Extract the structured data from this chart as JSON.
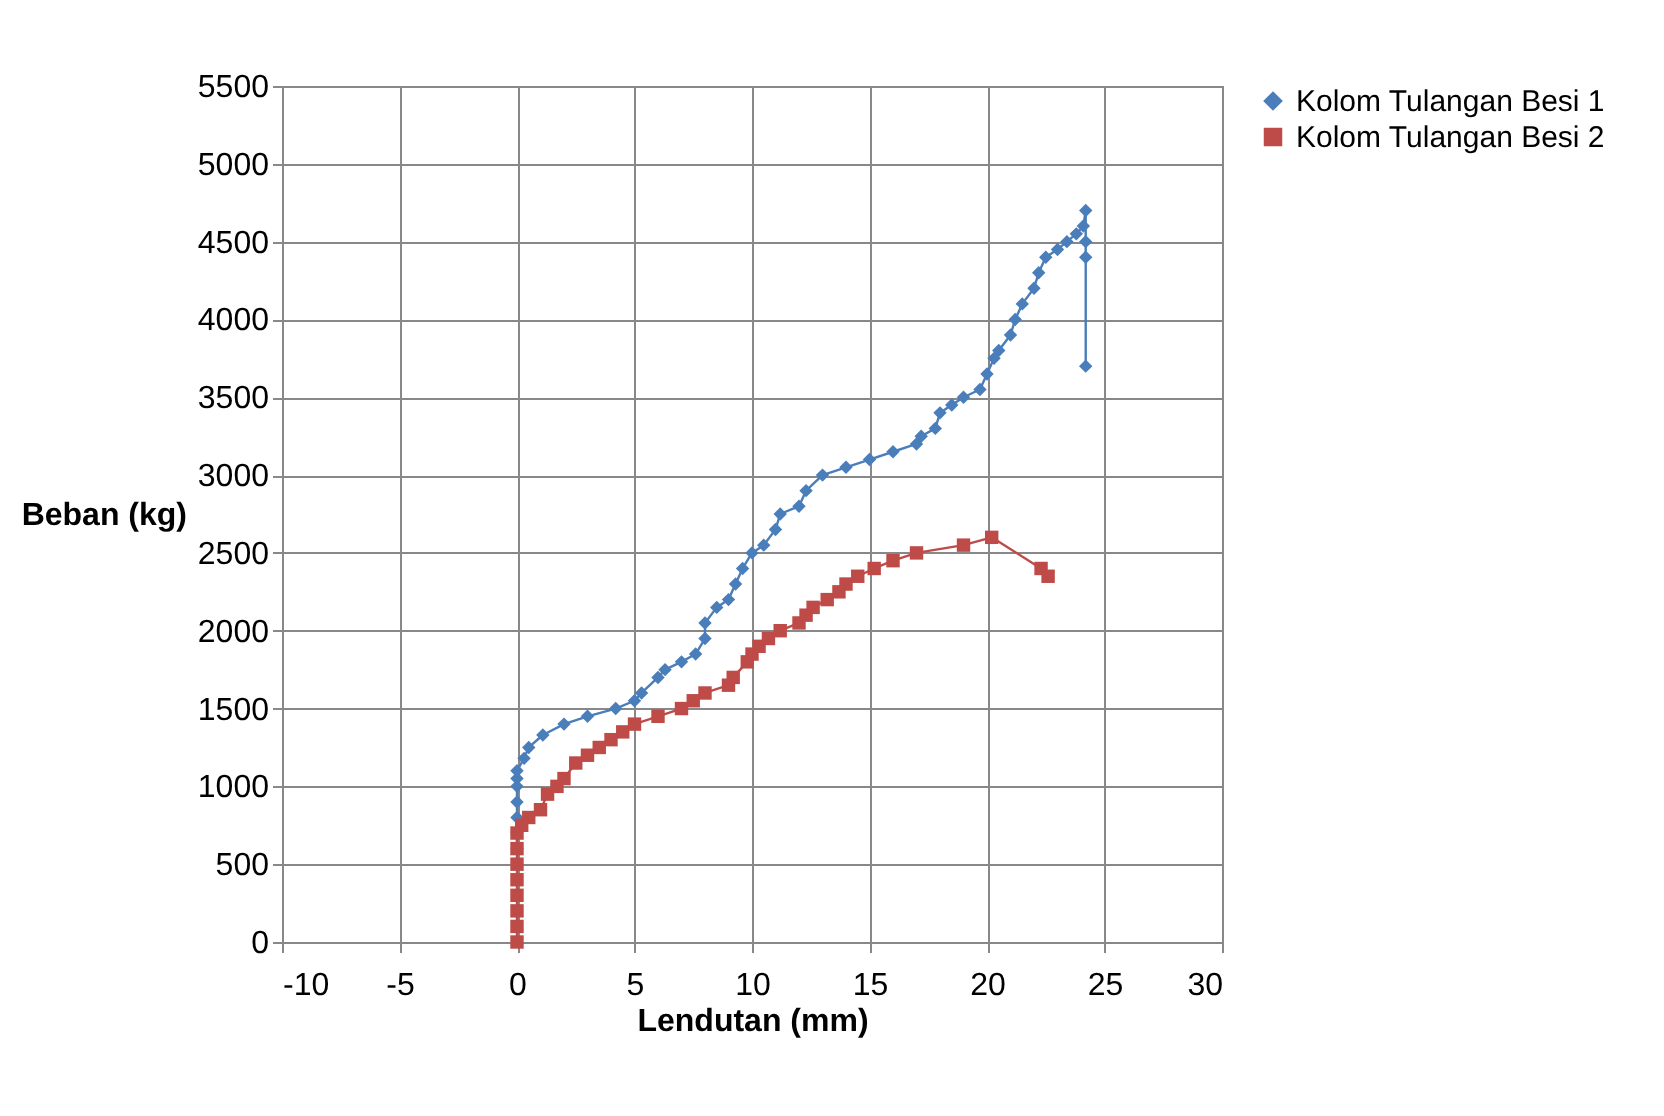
{
  "chart_data": {
    "type": "line",
    "xlabel": "Lendutan (mm)",
    "ylabel": "Beban (kg)",
    "xlim": [
      -10,
      30
    ],
    "xticks": [
      -10,
      -5,
      0,
      5,
      10,
      15,
      20,
      25,
      30
    ],
    "ylim": [
      0,
      5500
    ],
    "yticks": [
      0,
      500,
      1000,
      1500,
      2000,
      2500,
      3000,
      3500,
      4000,
      4500,
      5000,
      5500
    ],
    "grid": true,
    "legend": "right",
    "series": [
      {
        "name": "Kolom Tulangan Besi 1",
        "color": "#4a7ebb",
        "marker": "diamond",
        "x": [
          0,
          0,
          0,
          0,
          0,
          0,
          0,
          0.3,
          0.5,
          1.1,
          2,
          3,
          4.2,
          5,
          5.3,
          6,
          6.3,
          7,
          7.6,
          8,
          8,
          8.5,
          9,
          9.3,
          9.6,
          10,
          10.5,
          11,
          11.2,
          12,
          12.3,
          13,
          14,
          15,
          16,
          17,
          17.2,
          17.8,
          18,
          18.5,
          19,
          19.7,
          20,
          20.3,
          20.5,
          21,
          21.2,
          21.5,
          22,
          22.2,
          22.5,
          23,
          23.4,
          23.8,
          24.1,
          24.2,
          24.2,
          24.2,
          24.2
        ],
        "values": [
          600,
          700,
          800,
          900,
          1000,
          1050,
          1100,
          1180,
          1250,
          1330,
          1400,
          1450,
          1500,
          1550,
          1600,
          1700,
          1750,
          1800,
          1850,
          1950,
          2050,
          2150,
          2200,
          2300,
          2400,
          2500,
          2550,
          2650,
          2750,
          2800,
          2900,
          3000,
          3050,
          3100,
          3150,
          3200,
          3250,
          3300,
          3400,
          3450,
          3500,
          3550,
          3650,
          3750,
          3800,
          3900,
          4000,
          4100,
          4200,
          4300,
          4400,
          4450,
          4500,
          4550,
          4600,
          4700,
          4500,
          4400,
          3700
        ]
      },
      {
        "name": "Kolom Tulangan Besi 2",
        "color": "#be4b48",
        "marker": "square",
        "x": [
          0,
          0,
          0,
          0,
          0,
          0,
          0,
          0,
          0.2,
          0.5,
          1,
          1.3,
          1.7,
          2,
          2.5,
          3,
          3.5,
          4,
          4.5,
          5,
          6,
          7,
          7.5,
          8,
          9,
          9.2,
          9.8,
          10,
          10.3,
          10.7,
          11.2,
          12,
          12.3,
          12.6,
          13.2,
          13.7,
          14,
          14.5,
          15.2,
          16,
          17,
          19,
          20.2,
          22.3,
          22.6
        ],
        "values": [
          0,
          100,
          200,
          300,
          400,
          500,
          600,
          700,
          750,
          800,
          850,
          950,
          1000,
          1050,
          1150,
          1200,
          1250,
          1300,
          1350,
          1400,
          1450,
          1500,
          1550,
          1600,
          1650,
          1700,
          1800,
          1850,
          1900,
          1950,
          2000,
          2050,
          2100,
          2150,
          2200,
          2250,
          2300,
          2350,
          2400,
          2450,
          2500,
          2550,
          2600,
          2400,
          2350
        ]
      }
    ]
  }
}
